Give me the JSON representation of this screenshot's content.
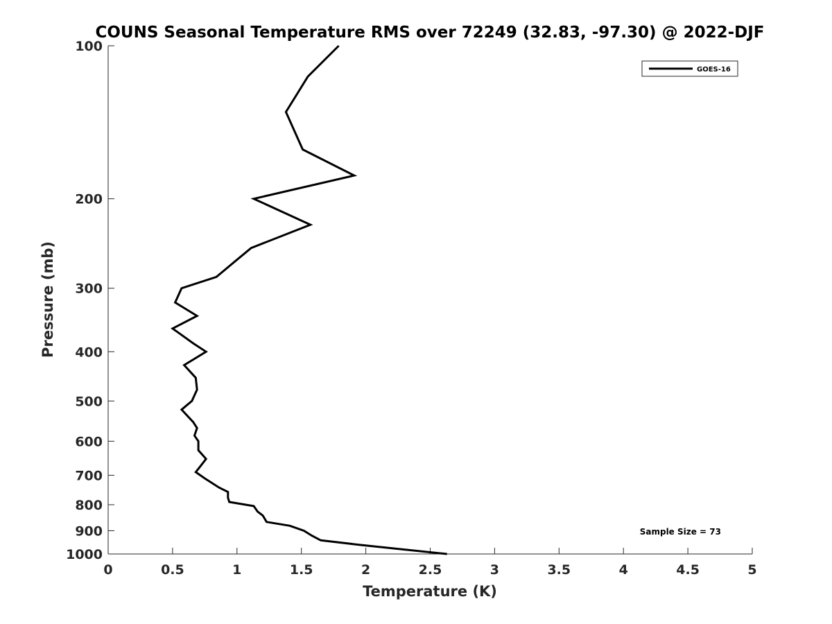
{
  "chart_data": {
    "type": "line",
    "title": "COUNS Seasonal Temperature RMS over 72249 (32.83, -97.30) @ 2022-DJF",
    "xlabel": "Temperature (K)",
    "ylabel": "Pressure (mb)",
    "xlim": [
      0,
      5
    ],
    "ylim": [
      100,
      1000
    ],
    "y_scale": "log",
    "y_reversed": true,
    "x_ticks": [
      "0",
      "0.5",
      "1",
      "1.5",
      "2",
      "2.5",
      "3",
      "3.5",
      "4",
      "4.5",
      "5"
    ],
    "y_ticks": [
      "100",
      "200",
      "300",
      "400",
      "500",
      "600",
      "700",
      "800",
      "900",
      "1000"
    ],
    "grid": false,
    "legend_position": "top-right",
    "annotation": "Sample Size = 73",
    "series": [
      {
        "name": "GOES-16",
        "color": "#000000",
        "points": [
          [
            1.79,
            100
          ],
          [
            1.55,
            115
          ],
          [
            1.38,
            135
          ],
          [
            1.51,
            160
          ],
          [
            1.91,
            180
          ],
          [
            1.13,
            200
          ],
          [
            1.57,
            225
          ],
          [
            1.11,
            250
          ],
          [
            0.99,
            265
          ],
          [
            0.84,
            285
          ],
          [
            0.57,
            300
          ],
          [
            0.52,
            320
          ],
          [
            0.69,
            340
          ],
          [
            0.5,
            360
          ],
          [
            0.66,
            385
          ],
          [
            0.76,
            400
          ],
          [
            0.59,
            425
          ],
          [
            0.68,
            450
          ],
          [
            0.69,
            475
          ],
          [
            0.65,
            500
          ],
          [
            0.57,
            520
          ],
          [
            0.66,
            550
          ],
          [
            0.69,
            565
          ],
          [
            0.67,
            585
          ],
          [
            0.7,
            600
          ],
          [
            0.7,
            625
          ],
          [
            0.76,
            650
          ],
          [
            0.71,
            675
          ],
          [
            0.68,
            690
          ],
          [
            0.75,
            710
          ],
          [
            0.86,
            740
          ],
          [
            0.93,
            755
          ],
          [
            0.93,
            775
          ],
          [
            0.94,
            790
          ],
          [
            1.13,
            805
          ],
          [
            1.16,
            825
          ],
          [
            1.2,
            840
          ],
          [
            1.23,
            865
          ],
          [
            1.41,
            880
          ],
          [
            1.52,
            900
          ],
          [
            1.58,
            920
          ],
          [
            1.65,
            940
          ],
          [
            1.96,
            960
          ],
          [
            2.3,
            980
          ],
          [
            2.63,
            1000
          ]
        ]
      }
    ]
  }
}
